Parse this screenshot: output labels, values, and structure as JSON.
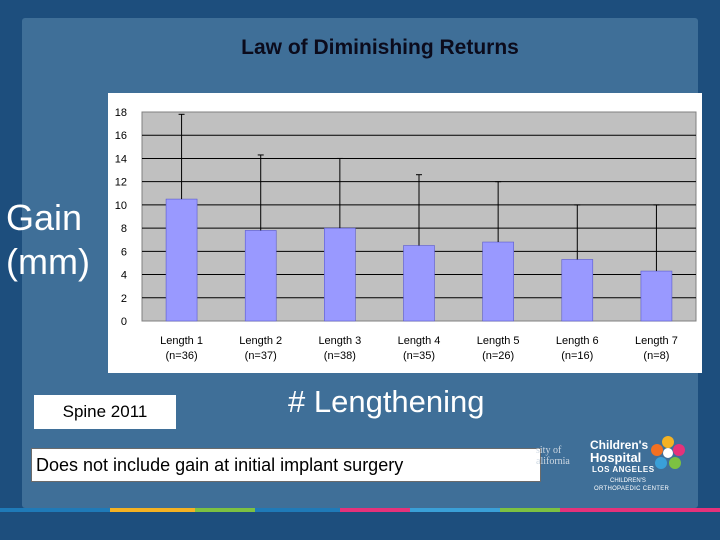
{
  "slide": {
    "title": "Law of Diminishing Returns",
    "ylabel_line1": "Gain",
    "ylabel_line2": "(mm)",
    "xtitle": "# Lengthening",
    "source": "Spine 2011",
    "note": "Does not include gain at initial implant surgery",
    "logo_uc_line1": "sity of",
    "logo_uc_line2": "alifornia",
    "logo_chla_line1": "Children's",
    "logo_chla_line2": "Hospital",
    "logo_chla_line3": "LOS ANGELES",
    "logo_chla_line4": "CHILDREN'S",
    "logo_chla_line5": "ORTHOPAEDIC CENTER"
  },
  "colors": {
    "bar": "#9999ff",
    "plot_bg": "#c0c0c0",
    "background": "#1d4e7d",
    "panel": "#3f6f98"
  },
  "chart_data": {
    "type": "bar",
    "title": "Law of Diminishing Returns",
    "ylabel": "Gain (mm)",
    "xlabel": "# Lengthening",
    "categories": [
      {
        "name": "Length 1",
        "n": "(n=36)"
      },
      {
        "name": "Length 2",
        "n": "(n=37)"
      },
      {
        "name": "Length 3",
        "n": "(n=38)"
      },
      {
        "name": "Length 4",
        "n": "(n=35)"
      },
      {
        "name": "Length 5",
        "n": "(n=26)"
      },
      {
        "name": "Length 6",
        "n": "(n=16)"
      },
      {
        "name": "Length 7",
        "n": "(n=8)"
      }
    ],
    "values": [
      10.5,
      7.8,
      8.0,
      6.5,
      6.8,
      5.3,
      4.3
    ],
    "error_upper": [
      17.8,
      14.3,
      14.0,
      12.6,
      12.0,
      10.0,
      10.0
    ],
    "ylim": [
      0,
      18
    ],
    "yticks": [
      0,
      2,
      4,
      6,
      8,
      10,
      12,
      14,
      16,
      18
    ],
    "grid": true,
    "legend": "none"
  }
}
